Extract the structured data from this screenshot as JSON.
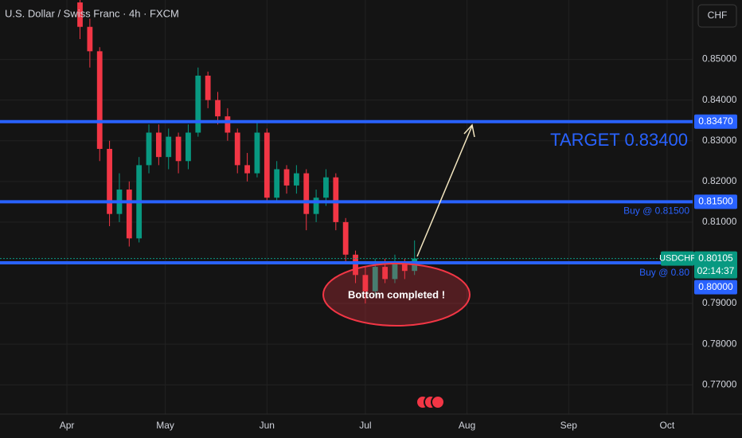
{
  "chart_data": {
    "type": "candlestick",
    "title": "U.S. Dollar / Swiss Franc · 4h · FXCM",
    "currency": "CHF",
    "xlim": [
      70.6,
      281.8
    ],
    "xticks": [
      {
        "value": 91,
        "label": "Apr"
      },
      {
        "value": 121,
        "label": "May"
      },
      {
        "value": 152,
        "label": "Jun"
      },
      {
        "value": 182,
        "label": "Jul"
      },
      {
        "value": 213,
        "label": "Aug"
      },
      {
        "value": 244,
        "label": "Sep"
      },
      {
        "value": 274,
        "label": "Oct"
      }
    ],
    "ylim": [
      0.7628,
      0.8646
    ],
    "yticks": [
      {
        "value": 0.77,
        "label": "0.77000"
      },
      {
        "value": 0.78,
        "label": "0.78000"
      },
      {
        "value": 0.79,
        "label": "0.79000"
      },
      {
        "value": 0.81,
        "label": "0.81000"
      },
      {
        "value": 0.82,
        "label": "0.82000"
      },
      {
        "value": 0.83,
        "label": "0.83000"
      },
      {
        "value": 0.84,
        "label": "0.84000"
      },
      {
        "value": 0.85,
        "label": "0.85000"
      }
    ],
    "grid": true,
    "series": [
      {
        "name": "USDCHF",
        "up_color": "#089981",
        "down_color": "#f23645",
        "x": [
          95,
          98,
          101,
          104,
          107,
          110,
          113,
          116,
          119,
          122,
          125,
          128,
          131,
          134,
          137,
          140,
          143,
          146,
          149,
          152,
          155,
          158,
          161,
          164,
          167,
          170,
          173,
          176,
          179,
          182,
          185,
          188,
          191,
          194,
          197
        ],
        "open": [
          0.864,
          0.858,
          0.852,
          0.828,
          0.812,
          0.818,
          0.806,
          0.824,
          0.832,
          0.826,
          0.831,
          0.825,
          0.832,
          0.846,
          0.84,
          0.836,
          0.832,
          0.824,
          0.822,
          0.832,
          0.816,
          0.823,
          0.819,
          0.822,
          0.812,
          0.816,
          0.821,
          0.81,
          0.802,
          0.797,
          0.793,
          0.799,
          0.796,
          0.8,
          0.798
        ],
        "high": [
          0.866,
          0.86,
          0.853,
          0.83,
          0.822,
          0.82,
          0.826,
          0.834,
          0.834,
          0.833,
          0.832,
          0.834,
          0.848,
          0.847,
          0.842,
          0.838,
          0.833,
          0.827,
          0.835,
          0.833,
          0.825,
          0.824,
          0.824,
          0.823,
          0.818,
          0.823,
          0.822,
          0.811,
          0.803,
          0.799,
          0.801,
          0.801,
          0.802,
          0.801,
          0.8055
        ],
        "low": [
          0.855,
          0.848,
          0.825,
          0.809,
          0.81,
          0.804,
          0.805,
          0.822,
          0.824,
          0.823,
          0.822,
          0.823,
          0.831,
          0.838,
          0.834,
          0.83,
          0.822,
          0.82,
          0.821,
          0.815,
          0.815,
          0.817,
          0.817,
          0.808,
          0.81,
          0.814,
          0.808,
          0.8,
          0.795,
          0.79,
          0.792,
          0.795,
          0.795,
          0.796,
          0.797
        ],
        "close": [
          0.858,
          0.852,
          0.828,
          0.812,
          0.818,
          0.806,
          0.824,
          0.832,
          0.826,
          0.831,
          0.825,
          0.832,
          0.846,
          0.84,
          0.836,
          0.832,
          0.824,
          0.822,
          0.832,
          0.816,
          0.823,
          0.819,
          0.822,
          0.812,
          0.816,
          0.821,
          0.81,
          0.802,
          0.797,
          0.793,
          0.799,
          0.796,
          0.8,
          0.798,
          0.80105
        ]
      }
    ],
    "current": {
      "price": 0.80105,
      "countdown": "02:14:37"
    },
    "levels": [
      {
        "value": 0.8347,
        "label": "0.83470",
        "color": "#2962ff"
      },
      {
        "value": 0.815,
        "label": "0.81500",
        "color": "#2962ff",
        "note": "Buy @ 0.81500"
      },
      {
        "value": 0.8,
        "label": "0.80000",
        "color": "#2962ff",
        "note": "Buy @ 0.80"
      }
    ],
    "target_text": "TARGET 0.83400",
    "ellipse_text": "Bottom completed !"
  }
}
